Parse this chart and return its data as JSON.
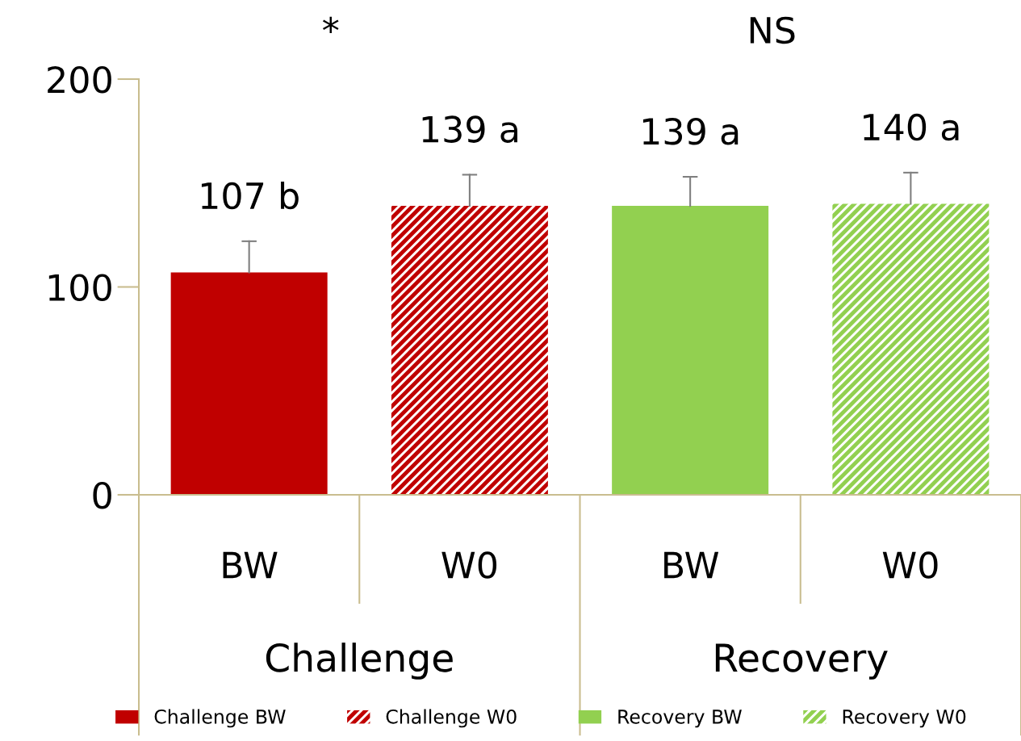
{
  "chart_data": {
    "type": "bar",
    "categories": [
      "BW",
      "W0",
      "BW",
      "W0"
    ],
    "series": [
      {
        "name": "Challenge BW",
        "color": "#c00000",
        "values": [
          107,
          null,
          null,
          null
        ],
        "errors": [
          [
            107,
            122
          ],
          null,
          null,
          null
        ],
        "value_labels": [
          "107 b",
          null,
          null,
          null
        ]
      },
      {
        "name": "Challenge W0",
        "color": "#c00000",
        "values": [
          null,
          139,
          null,
          null
        ],
        "errors": [
          null,
          [
            139,
            154
          ],
          null,
          null
        ],
        "value_labels": [
          null,
          "139 a",
          null,
          null
        ]
      },
      {
        "name": "Recovery BW",
        "color": "#92d050",
        "values": [
          null,
          null,
          139,
          null
        ],
        "errors": [
          null,
          null,
          [
            139,
            153
          ],
          null
        ],
        "value_labels": [
          null,
          null,
          "139 a",
          null
        ]
      },
      {
        "name": "Recovery W0",
        "color": "#92d050",
        "values": [
          null,
          null,
          null,
          140
        ],
        "errors": [
          null,
          null,
          null,
          [
            140,
            155
          ]
        ],
        "value_labels": [
          null,
          null,
          null,
          "140 a"
        ]
      }
    ],
    "ylim": [
      0,
      200
    ],
    "yticks": [
      0,
      100,
      200
    ],
    "annotations": [
      "*",
      "NS",
      "Challenge",
      "Recovery"
    ],
    "grid": false,
    "legend": "bottom"
  }
}
